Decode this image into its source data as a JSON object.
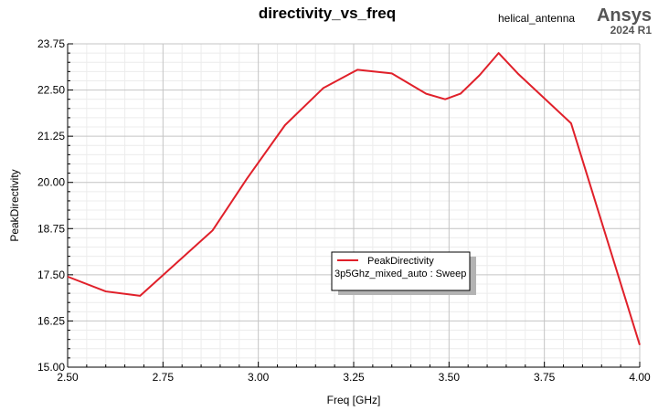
{
  "header": {
    "project": "helical_antenna",
    "brand": "Ansys",
    "version": "2024 R1"
  },
  "chart_data": {
    "type": "line",
    "title": "directivity_vs_freq",
    "xlabel": "Freq [GHz]",
    "ylabel": "PeakDirectivity",
    "xlim": [
      2.5,
      4.0
    ],
    "ylim": [
      15.0,
      23.75
    ],
    "x_ticks": [
      "2.50",
      "2.75",
      "3.00",
      "3.25",
      "3.50",
      "3.75",
      "4.00"
    ],
    "y_ticks": [
      "15.00",
      "16.25",
      "17.50",
      "18.75",
      "20.00",
      "21.25",
      "22.50",
      "23.75"
    ],
    "grid": true,
    "legend_position": "center",
    "series": [
      {
        "name": "PeakDirectivity",
        "legend_detail": "3p5Ghz_mixed_auto : Sweep",
        "color": "#e0202a",
        "x": [
          2.5,
          2.6,
          2.69,
          2.88,
          2.97,
          3.07,
          3.17,
          3.26,
          3.35,
          3.44,
          3.49,
          3.53,
          3.58,
          3.63,
          3.68,
          3.82,
          4.0
        ],
        "y": [
          17.45,
          17.05,
          16.93,
          18.7,
          20.1,
          21.55,
          22.55,
          23.05,
          22.95,
          22.4,
          22.25,
          22.4,
          22.9,
          23.5,
          22.95,
          21.6,
          15.6
        ]
      }
    ]
  }
}
